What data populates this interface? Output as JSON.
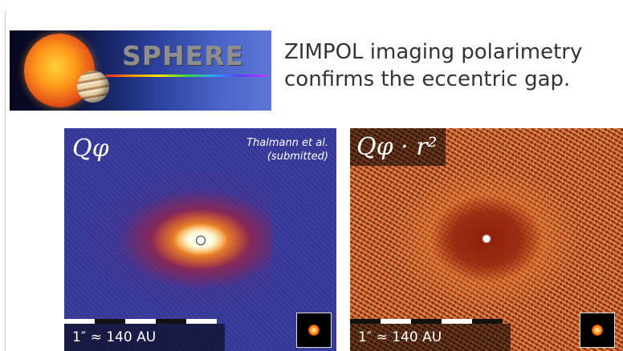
{
  "slide": {
    "banner": {
      "title": "SPHERE",
      "colors": {
        "background": "#0b1440",
        "title": "#8e8e8e"
      }
    },
    "headline": {
      "line1": "ZIMPOL imaging polarimetry",
      "line2": "confirms the eccentric gap."
    },
    "panels": [
      {
        "label": "Qφ",
        "credit_line1": "Thalmann et al.",
        "credit_line2": "(submitted)",
        "scale": "1″ ≈ 140 AU",
        "colormap": "blue-red-yellow"
      },
      {
        "label": "Qφ · r²",
        "scale": "1″ ≈ 140 AU",
        "colormap": "red-orange"
      }
    ]
  }
}
